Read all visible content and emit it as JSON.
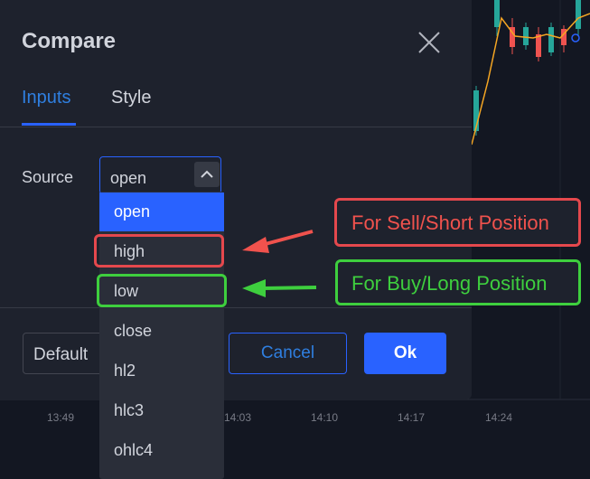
{
  "dialog": {
    "title": "Compare",
    "tabs": [
      "Inputs",
      "Style"
    ],
    "source_label": "Source",
    "source_value": "open",
    "options": [
      "open",
      "high",
      "low",
      "close",
      "hl2",
      "hlc3",
      "ohlc4"
    ],
    "buttons": {
      "default": "Default",
      "cancel": "Cancel",
      "ok": "Ok"
    }
  },
  "annotations": {
    "sell": "For Sell/Short Position",
    "buy": "For Buy/Long Position"
  },
  "time_axis": [
    "13:49",
    "14:03",
    "14:10",
    "14:17",
    "14:24"
  ]
}
